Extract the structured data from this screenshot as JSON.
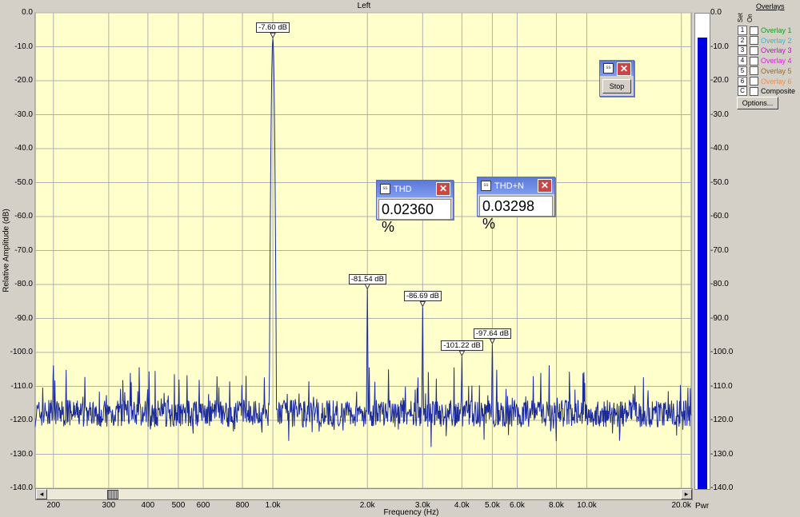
{
  "plot_title": "Left",
  "y_axis_label": "Relative Amplitude (dB)",
  "x_axis_label": "Frequency (Hz)",
  "y_ticks": [
    "0.0",
    "-10.0",
    "-20.0",
    "-30.0",
    "-40.0",
    "-50.0",
    "-60.0",
    "-70.0",
    "-80.0",
    "-90.0",
    "-100.0",
    "-110.0",
    "-120.0",
    "-130.0",
    "-140.0"
  ],
  "x_ticks": [
    {
      "f": 200,
      "label": "200"
    },
    {
      "f": 300,
      "label": "300"
    },
    {
      "f": 400,
      "label": "400"
    },
    {
      "f": 500,
      "label": "500"
    },
    {
      "f": 600,
      "label": "600"
    },
    {
      "f": 800,
      "label": "800"
    },
    {
      "f": 1000,
      "label": "1.0k"
    },
    {
      "f": 2000,
      "label": "2.0k"
    },
    {
      "f": 3000,
      "label": "3.0k"
    },
    {
      "f": 4000,
      "label": "4.0k"
    },
    {
      "f": 5000,
      "label": "5.0k"
    },
    {
      "f": 6000,
      "label": "6.0k"
    },
    {
      "f": 8000,
      "label": "8.0k"
    },
    {
      "f": 10000,
      "label": "10.0k"
    },
    {
      "f": 20000,
      "label": "20.0k"
    }
  ],
  "power_meter": {
    "label": "Pwr",
    "ticks": [
      "0.0",
      "-10.0",
      "-20.0",
      "-30.0",
      "-40.0",
      "-50.0",
      "-60.0",
      "-70.0",
      "-80.0",
      "-90.0",
      "-100.0",
      "-110.0",
      "-120.0",
      "-130.0",
      "-140.0"
    ],
    "level_db": -7,
    "color": "#0000e0"
  },
  "overlays": {
    "title": "Overlays",
    "col_set": "Set",
    "col_on": "On",
    "items": [
      {
        "key": "1",
        "label": "Overlay 1",
        "color": "#1a9a1a"
      },
      {
        "key": "2",
        "label": "Overlay 2",
        "color": "#3fb4c8"
      },
      {
        "key": "3",
        "label": "Overlay 3",
        "color": "#b020b0"
      },
      {
        "key": "4",
        "label": "Overlay 4",
        "color": "#e01ce0"
      },
      {
        "key": "5",
        "label": "Overlay 5",
        "color": "#9a6a2a"
      },
      {
        "key": "6",
        "label": "Overlay 6",
        "color": "#e89050"
      },
      {
        "key": "C",
        "label": "Composite",
        "color": "#000000"
      }
    ],
    "options_label": "Options..."
  },
  "stop_window": {
    "button": "Stop"
  },
  "thd_window": {
    "title": "THD",
    "value": "0.02360 %"
  },
  "thdn_window": {
    "title": "THD+N",
    "value": "0.03298 %"
  },
  "chart_data": {
    "type": "line",
    "x_scale": "log",
    "xlim": [
      175,
      21500
    ],
    "ylim": [
      -140,
      0
    ],
    "grid": true,
    "line_color": "#1c2b9c",
    "background": "#ffffcc",
    "noise_floor_db": -118,
    "peaks": [
      {
        "f": 1000,
        "db": -7.6,
        "label": "-7.60 dB"
      },
      {
        "f": 2000,
        "db": -81.54,
        "label": "-81.54 dB"
      },
      {
        "f": 3000,
        "db": -86.69,
        "label": "-86.69 dB"
      },
      {
        "f": 4000,
        "db": -101.22,
        "label": "-101.22 dB"
      },
      {
        "f": 5000,
        "db": -97.64,
        "label": "-97.64 dB"
      }
    ]
  }
}
